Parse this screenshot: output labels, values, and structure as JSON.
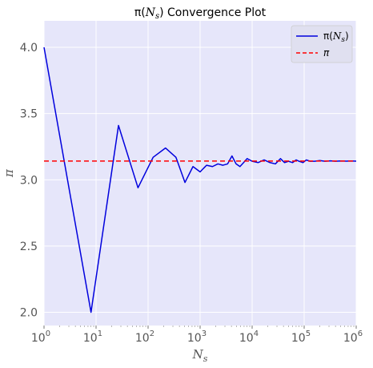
{
  "chart_data": {
    "type": "line",
    "title": "π(N_s) Convergence Plot",
    "xlabel": "N_s",
    "ylabel": "π",
    "xscale": "log",
    "xlim": [
      1,
      1000000
    ],
    "ylim": [
      1.9,
      4.2
    ],
    "xticks": [
      {
        "value": 1,
        "base": "10",
        "exp": "0"
      },
      {
        "value": 10,
        "base": "10",
        "exp": "1"
      },
      {
        "value": 100,
        "base": "10",
        "exp": "2"
      },
      {
        "value": 1000,
        "base": "10",
        "exp": "3"
      },
      {
        "value": 10000,
        "base": "10",
        "exp": "4"
      },
      {
        "value": 100000,
        "base": "10",
        "exp": "5"
      },
      {
        "value": 1000000,
        "base": "10",
        "exp": "6"
      }
    ],
    "yticks": [
      {
        "value": 2.0,
        "label": "2.0"
      },
      {
        "value": 2.5,
        "label": "2.5"
      },
      {
        "value": 3.0,
        "label": "3.0"
      },
      {
        "value": 3.5,
        "label": "3.5"
      },
      {
        "value": 4.0,
        "label": "4.0"
      }
    ],
    "grid": true,
    "legend_position": "top-right",
    "series": [
      {
        "name": "π(N_s)",
        "color": "#0000dd",
        "style": "solid",
        "x": [
          1,
          8,
          27,
          64,
          125,
          216,
          343,
          512,
          729,
          1000,
          1331,
          1728,
          2197,
          2744,
          3375,
          4096,
          4913,
          5832,
          6859,
          8000,
          10000,
          13000,
          17000,
          22000,
          28000,
          35000,
          42000,
          50000,
          60000,
          70000,
          80000,
          95000,
          110000,
          130000,
          160000,
          200000,
          250000,
          320000,
          400000,
          500000,
          650000,
          800000,
          1000000
        ],
        "y": [
          4.0,
          2.0,
          3.41,
          2.94,
          3.17,
          3.24,
          3.17,
          2.98,
          3.1,
          3.06,
          3.11,
          3.1,
          3.12,
          3.11,
          3.12,
          3.18,
          3.12,
          3.1,
          3.13,
          3.16,
          3.14,
          3.13,
          3.15,
          3.13,
          3.12,
          3.16,
          3.13,
          3.14,
          3.13,
          3.15,
          3.14,
          3.13,
          3.15,
          3.14,
          3.14,
          3.145,
          3.14,
          3.143,
          3.14,
          3.142,
          3.141,
          3.142,
          3.141
        ]
      },
      {
        "name": "π",
        "color": "#ff0000",
        "style": "dashed",
        "x": [
          1,
          1000000
        ],
        "y": [
          3.14159,
          3.14159
        ]
      }
    ]
  }
}
